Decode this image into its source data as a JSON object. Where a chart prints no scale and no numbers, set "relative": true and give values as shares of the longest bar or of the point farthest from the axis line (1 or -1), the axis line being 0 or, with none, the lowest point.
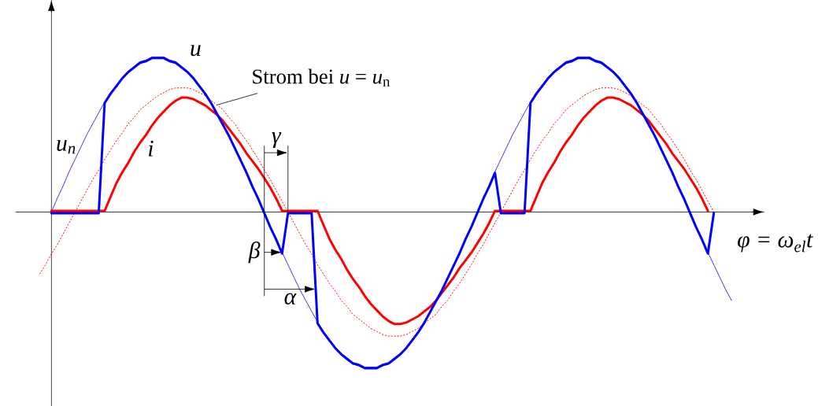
{
  "chart_data": {
    "type": "line",
    "relative": true,
    "xlabel": "φ = ω$_{el}$t",
    "categories": [
      null,
      null,
      null,
      null,
      null,
      null,
      null,
      null,
      null,
      null,
      null,
      null,
      null,
      null,
      null,
      null,
      null,
      null,
      null,
      null,
      null,
      null,
      null,
      null,
      null,
      null,
      null,
      null,
      null,
      null,
      null,
      null,
      null,
      null,
      null,
      null,
      null,
      null,
      null,
      null,
      null,
      null,
      null,
      null,
      null,
      null,
      null,
      null,
      null,
      null,
      null,
      null,
      null,
      null,
      null,
      null,
      null,
      null,
      null,
      null,
      null,
      null,
      null,
      null,
      null,
      null,
      null,
      null,
      null,
      null,
      null,
      null,
      null,
      null,
      null,
      null,
      null,
      null,
      null,
      null,
      null,
      null,
      null,
      null,
      null,
      null,
      null,
      null,
      null,
      null,
      null,
      null,
      null,
      null,
      null,
      null,
      null,
      null,
      null,
      null,
      null,
      null,
      null,
      null,
      null,
      null,
      null,
      null,
      null,
      null,
      null,
      null,
      null,
      null,
      null,
      null,
      null,
      null
    ],
    "series": [
      {
        "name": "u$_{n}$",
        "color": "#0000ff",
        "values": [
          null,
          null,
          0,
          0.09,
          0.17,
          0.26,
          0.34,
          0.42,
          0.5,
          0.57,
          0.64,
          0.71,
          0.77,
          0.82,
          0.87,
          0.91,
          0.94,
          0.97,
          0.98,
          1,
          1,
          1,
          0.98,
          0.97,
          0.94,
          0.91,
          0.87,
          0.82,
          0.77,
          0.71,
          0.64,
          0.57,
          0.5,
          0.42,
          0.34,
          0.26,
          0.17,
          0.09,
          0,
          -0.09,
          -0.17,
          -0.26,
          -0.34,
          -0.42,
          -0.5,
          -0.57,
          -0.64,
          -0.71,
          -0.77,
          -0.82,
          -0.87,
          -0.91,
          -0.94,
          -0.97,
          -0.98,
          -1,
          -1,
          -1,
          -0.98,
          -0.97,
          -0.94,
          -0.91,
          -0.87,
          -0.82,
          -0.77,
          -0.71,
          -0.64,
          -0.57,
          -0.5,
          -0.42,
          -0.34,
          -0.26,
          -0.17,
          -0.09,
          0,
          0.09,
          0.17,
          0.26,
          0.34,
          0.42,
          0.5,
          0.57,
          0.64,
          0.71,
          0.77,
          0.82,
          0.87,
          0.91,
          0.94,
          0.97,
          0.98,
          1,
          1,
          1,
          0.98,
          0.97,
          0.94,
          0.91,
          0.87,
          0.82,
          0.77,
          0.71,
          0.64,
          0.57,
          0.5,
          0.42,
          0.34,
          0.26,
          0.17,
          0.09,
          0,
          -0.09,
          -0.17,
          -0.26,
          -0.34,
          -0.42,
          -0.5,
          -0.57
        ]
      },
      {
        "name": "Strom bei *u* = *u*$_{n}$",
        "color": "#ff0000",
        "line_style": "dotted",
        "values": [
          -0.4,
          -0.34,
          -0.27,
          -0.21,
          -0.14,
          -0.07,
          0,
          0.07,
          0.14,
          0.21,
          0.27,
          0.34,
          0.4,
          0.46,
          0.51,
          0.57,
          0.61,
          0.66,
          0.69,
          0.72,
          0.75,
          0.77,
          0.79,
          0.8,
          0.8,
          0.8,
          0.79,
          0.77,
          0.75,
          0.72,
          0.69,
          0.66,
          0.61,
          0.57,
          0.51,
          0.46,
          0.4,
          0.34,
          0.27,
          0.21,
          0.14,
          0.07,
          0,
          -0.07,
          -0.14,
          -0.21,
          -0.27,
          -0.34,
          -0.4,
          -0.46,
          -0.51,
          -0.57,
          -0.61,
          -0.66,
          -0.69,
          -0.72,
          -0.75,
          -0.77,
          -0.79,
          -0.8,
          -0.8,
          -0.8,
          -0.79,
          -0.77,
          -0.75,
          -0.72,
          -0.69,
          -0.66,
          -0.61,
          -0.57,
          -0.51,
          -0.46,
          -0.4,
          -0.34,
          -0.27,
          -0.21,
          -0.14,
          -0.07,
          0,
          0.07,
          0.14,
          0.21,
          0.27,
          0.34,
          0.4,
          0.46,
          0.51,
          0.57,
          0.61,
          0.66,
          0.69,
          0.72,
          0.75,
          0.77,
          0.79,
          0.8,
          0.8,
          0.8,
          0.79,
          0.77,
          0.75,
          0.72,
          0.69,
          0.66,
          0.61,
          0.57,
          0.51,
          0.46,
          0.4,
          0.34,
          0.27,
          0.21,
          0.14,
          0.07,
          0,
          null,
          null,
          null
        ]
      },
      {
        "name": "i",
        "color": "#ff0000",
        "values": [
          null,
          null,
          0,
          0,
          0,
          0,
          0,
          0,
          0,
          0,
          0,
          0,
          0.09,
          0.18,
          0.25,
          0.31,
          0.38,
          0.44,
          0.49,
          0.55,
          0.6,
          0.64,
          0.68,
          0.71,
          0.73,
          0.73,
          0.72,
          0.7,
          0.68,
          0.65,
          0.62,
          0.58,
          0.53,
          0.48,
          0.43,
          0.37,
          0.32,
          0.27,
          0.21,
          0.15,
          0.08,
          0,
          0,
          0,
          0,
          0,
          0,
          0,
          -0.09,
          -0.18,
          -0.25,
          -0.31,
          -0.38,
          -0.44,
          -0.49,
          -0.55,
          -0.6,
          -0.64,
          -0.68,
          -0.71,
          -0.73,
          -0.73,
          -0.72,
          -0.7,
          -0.68,
          -0.65,
          -0.62,
          -0.58,
          -0.53,
          -0.48,
          -0.43,
          -0.37,
          -0.32,
          -0.27,
          -0.21,
          -0.15,
          -0.08,
          0,
          0,
          0,
          0,
          0,
          0,
          0,
          0.09,
          0.18,
          0.25,
          0.31,
          0.38,
          0.44,
          0.49,
          0.55,
          0.6,
          0.64,
          0.68,
          0.71,
          0.73,
          0.73,
          0.72,
          0.7,
          0.68,
          0.65,
          0.62,
          0.58,
          0.53,
          0.48,
          0.43,
          0.37,
          0.32,
          0.27,
          0.21,
          0.15,
          0.08,
          0,
          null,
          null,
          null,
          null
        ]
      },
      {
        "name": "u",
        "color": "#0000ff",
        "values": [
          null,
          null,
          0,
          0,
          0,
          0,
          0,
          0,
          0,
          0,
          0,
          0.71,
          0.77,
          0.82,
          0.87,
          0.91,
          0.94,
          0.97,
          0.98,
          1,
          1,
          1,
          0.98,
          0.97,
          0.94,
          0.91,
          0.87,
          0.82,
          0.77,
          0.71,
          0.64,
          0.57,
          0.5,
          0.42,
          0.34,
          0.26,
          0.17,
          0.09,
          0,
          -0.09,
          -0.17,
          -0.26,
          0,
          0,
          0,
          0,
          0,
          -0.71,
          -0.77,
          -0.82,
          -0.87,
          -0.91,
          -0.94,
          -0.97,
          -0.98,
          -1,
          -1,
          -1,
          -0.98,
          -0.97,
          -0.94,
          -0.91,
          -0.87,
          -0.82,
          -0.77,
          -0.71,
          -0.64,
          -0.57,
          -0.5,
          -0.42,
          -0.34,
          -0.26,
          -0.17,
          -0.09,
          0,
          0.09,
          0.17,
          0.26,
          0,
          0,
          0,
          0,
          0,
          0.71,
          0.77,
          0.82,
          0.87,
          0.91,
          0.94,
          0.97,
          0.98,
          1,
          1,
          1,
          0.98,
          0.97,
          0.94,
          0.91,
          0.87,
          0.82,
          0.77,
          0.71,
          0.64,
          0.57,
          0.5,
          0.42,
          0.34,
          0.26,
          0.17,
          0.09,
          0,
          -0.09,
          -0.17,
          -0.26,
          0,
          null,
          null,
          null
        ]
      }
    ],
    "annotations": [
      "γ",
      "β",
      "α"
    ]
  }
}
